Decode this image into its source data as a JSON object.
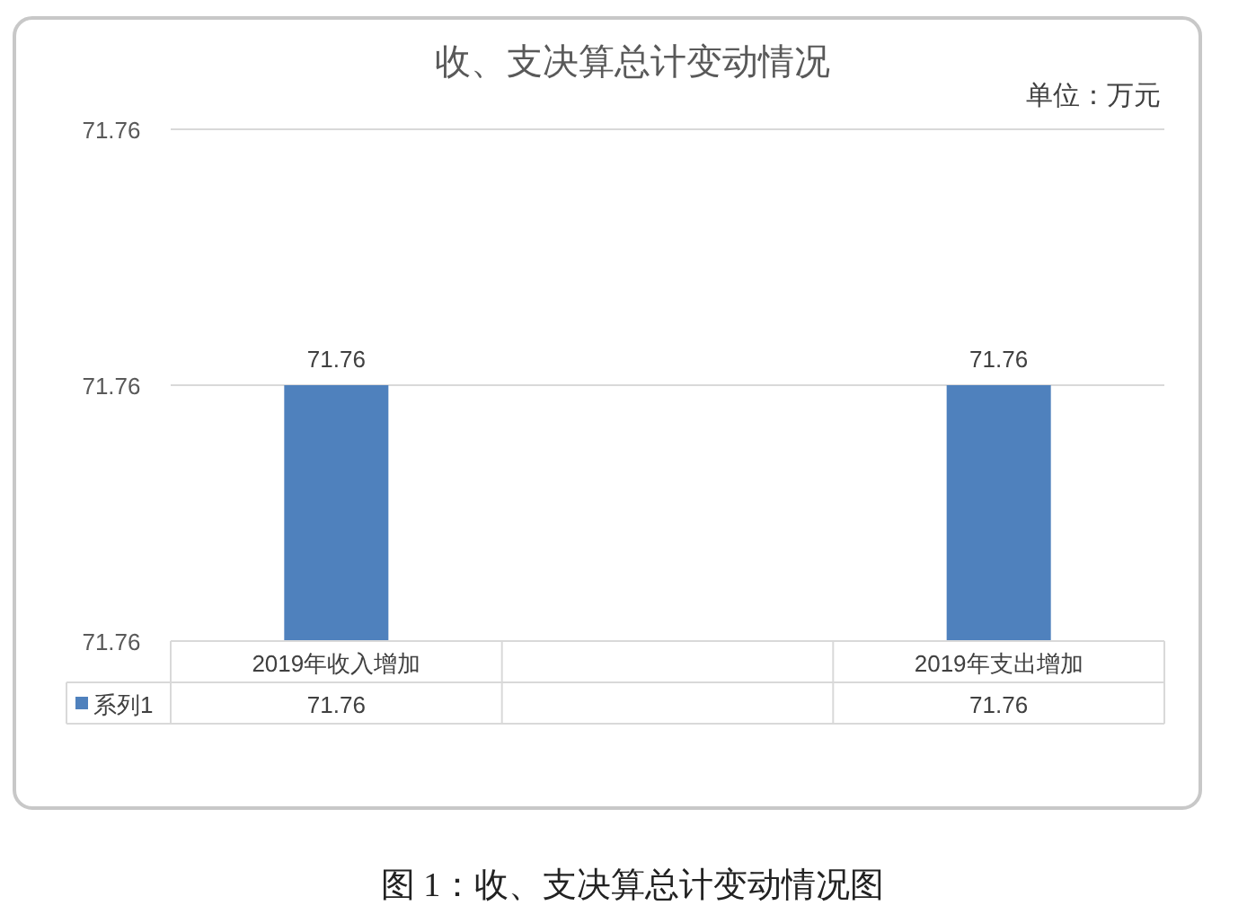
{
  "chart_data": {
    "type": "bar",
    "title": "收、支决算总计变动情况",
    "categories": [
      "2019年收入增加",
      null,
      "2019年支出增加"
    ],
    "series": [
      {
        "name": "系列1",
        "color": "#4f81bd",
        "values": [
          71.76,
          null,
          71.76
        ],
        "value_labels": [
          "71.76",
          null,
          "71.76"
        ]
      }
    ],
    "ylim": [
      71.755,
      71.765
    ],
    "yticks": [
      {
        "value": 71.755,
        "label": "71.76"
      },
      {
        "value": 71.76,
        "label": "71.76"
      },
      {
        "value": 71.765,
        "label": "71.76"
      }
    ],
    "grid": "y",
    "data_labels": true,
    "legend": "bottom",
    "annotations": [
      "单位：万元",
      "图 1：收、支决算总计变动情况图",
      {
        "text": "71.76",
        "x": "2019年收入增加",
        "y": 71.76
      },
      {
        "text": "71.76",
        "x": "2019年支出增加",
        "y": 71.76
      }
    ]
  }
}
